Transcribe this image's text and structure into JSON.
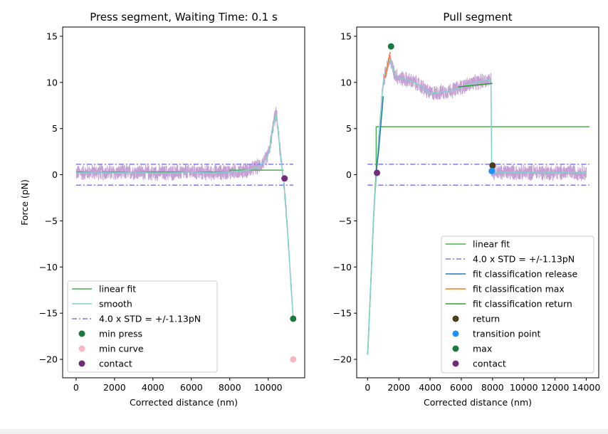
{
  "chart_data": [
    {
      "type": "line",
      "title": "Press segment, Waiting Time: 0.1 s",
      "xlabel": "Corrected distance (nm)",
      "ylabel": "Force (pN)",
      "xlim": [
        -700,
        11900
      ],
      "ylim": [
        -22,
        16
      ],
      "xticks": [
        0,
        2000,
        4000,
        6000,
        8000,
        10000
      ],
      "xtick_labels": [
        "0",
        "2000",
        "4000",
        "6000",
        "8000",
        "10000"
      ],
      "yticks": [
        -20,
        -15,
        -10,
        -5,
        0,
        5,
        10,
        15
      ],
      "ytick_labels": [
        "−20",
        "−15",
        "−10",
        "−5",
        "0",
        "5",
        "10",
        "15"
      ],
      "grid": false,
      "legend_position": "lower-left",
      "series": [
        {
          "name": "linear fit",
          "kind": "line",
          "color": "#4caf50",
          "style": "solid",
          "x": [
            0,
            8000,
            8000,
            10800
          ],
          "y": [
            0.3,
            0.3,
            0.5,
            0.5
          ]
        },
        {
          "name": "smooth",
          "kind": "line",
          "color": "#7fd3c6",
          "style": "solid",
          "x": [
            0,
            1000,
            2000,
            3000,
            4000,
            5000,
            6000,
            7000,
            8000,
            8500,
            9000,
            9500,
            9800,
            10000,
            10100,
            10200,
            10300,
            10400,
            10450,
            10500,
            10600,
            10700,
            10800,
            10900,
            11000,
            11100,
            11200,
            11300
          ],
          "y": [
            0.2,
            0.3,
            0.2,
            0.3,
            0.2,
            0.2,
            0.3,
            0.2,
            0.3,
            0.4,
            0.5,
            0.9,
            1.4,
            2.2,
            3.2,
            4.5,
            5.8,
            6.5,
            6.2,
            5.0,
            3.0,
            1.0,
            -0.5,
            -3.0,
            -6.0,
            -9.0,
            -12.5,
            -15.5
          ]
        },
        {
          "name": "4.0 x STD = +/-1.13pN",
          "kind": "hline-pair",
          "color": "#7b7bf0",
          "style": "dashdot",
          "values": [
            1.13,
            -1.13
          ],
          "x": [
            0,
            11300
          ]
        },
        {
          "name": "min press",
          "kind": "marker",
          "color": "#1a7a3a",
          "x": [
            11300
          ],
          "y": [
            -15.6
          ]
        },
        {
          "name": "min curve",
          "kind": "marker",
          "color": "#f5b8c4",
          "x": [
            11300
          ],
          "y": [
            -20.0
          ]
        },
        {
          "name": "contact",
          "kind": "marker",
          "color": "#722a7a",
          "x": [
            10850
          ],
          "y": [
            -0.4
          ]
        }
      ],
      "raw_signal": {
        "color": "#c39bd3",
        "noise_pN": 0.6
      }
    },
    {
      "type": "line",
      "title": "Pull segment",
      "xlabel": "Corrected distance (nm)",
      "ylabel": "",
      "xlim": [
        -700,
        14800
      ],
      "ylim": [
        -22,
        16
      ],
      "xticks": [
        0,
        2000,
        4000,
        6000,
        8000,
        10000,
        12000,
        14000
      ],
      "xtick_labels": [
        "0",
        "2000",
        "4000",
        "6000",
        "8000",
        "10000",
        "12000",
        "14000"
      ],
      "yticks": [
        -20,
        -15,
        -10,
        -5,
        0,
        5,
        10,
        15
      ],
      "ytick_labels": [
        "−20",
        "−15",
        "−10",
        "−5",
        "0",
        "5",
        "10",
        "15"
      ],
      "grid": false,
      "legend_position": "lower-right",
      "series": [
        {
          "name": "linear fit",
          "kind": "line",
          "color": "#4caf50",
          "style": "solid",
          "x": [
            0,
            200,
            400,
            550,
            550,
            14200
          ],
          "y": [
            -19.5,
            -12,
            -4,
            0.5,
            5.2,
            5.2
          ]
        },
        {
          "name": "smooth",
          "kind": "line",
          "color": "#7fd3c6",
          "style": "solid",
          "legend": false,
          "x": [
            0,
            200,
            400,
            600,
            800,
            1000,
            1200,
            1400,
            1500,
            1700,
            2000,
            2500,
            3000,
            3500,
            4000,
            4500,
            5000,
            5500,
            6000,
            6500,
            7000,
            7500,
            7900,
            7950,
            8000,
            8500,
            9000,
            10000,
            11000,
            12000,
            13000,
            14000
          ],
          "y": [
            -19.5,
            -12,
            -4,
            1.0,
            6.0,
            10.0,
            11.5,
            12.5,
            12.2,
            11.0,
            10.5,
            10.3,
            10.0,
            9.5,
            8.8,
            8.9,
            9.0,
            9.2,
            9.5,
            9.8,
            10.0,
            10.2,
            10.3,
            0.5,
            0.3,
            0.2,
            0.3,
            0.2,
            0.3,
            0.2,
            0.3,
            0.2
          ]
        },
        {
          "name": "4.0 x STD = +/-1.13pN",
          "kind": "hline-pair",
          "color": "#7b7bf0",
          "style": "dashdot",
          "values": [
            1.13,
            -1.13
          ],
          "x": [
            0,
            14200
          ]
        },
        {
          "name": "fit classification release",
          "kind": "line",
          "color": "#1f77b4",
          "style": "solid",
          "x": [
            550,
            700,
            850,
            1000
          ],
          "y": [
            0.3,
            2.5,
            5.5,
            8.5
          ]
        },
        {
          "name": "fit classification max",
          "kind": "line",
          "color": "#ff7f0e",
          "style": "solid",
          "x": [
            1100,
            1300,
            1450
          ],
          "y": [
            10.5,
            12.0,
            13.3
          ]
        },
        {
          "name": "fit classification return",
          "kind": "line",
          "color": "#2ca02c",
          "style": "solid",
          "x": [
            5800,
            8000
          ],
          "y": [
            9.5,
            9.9
          ]
        },
        {
          "name": "return",
          "kind": "marker",
          "color": "#4a3c1a",
          "x": [
            8000
          ],
          "y": [
            1.0
          ]
        },
        {
          "name": "transition point",
          "kind": "marker",
          "color": "#1e90ff",
          "x": [
            7950
          ],
          "y": [
            0.4
          ]
        },
        {
          "name": "max",
          "kind": "marker",
          "color": "#1a7a3a",
          "x": [
            1500
          ],
          "y": [
            13.9
          ]
        },
        {
          "name": "contact",
          "kind": "marker",
          "color": "#722a7a",
          "x": [
            600
          ],
          "y": [
            0.2
          ]
        }
      ],
      "raw_signal": {
        "color": "#c39bd3",
        "noise_pN": 0.6
      }
    }
  ]
}
